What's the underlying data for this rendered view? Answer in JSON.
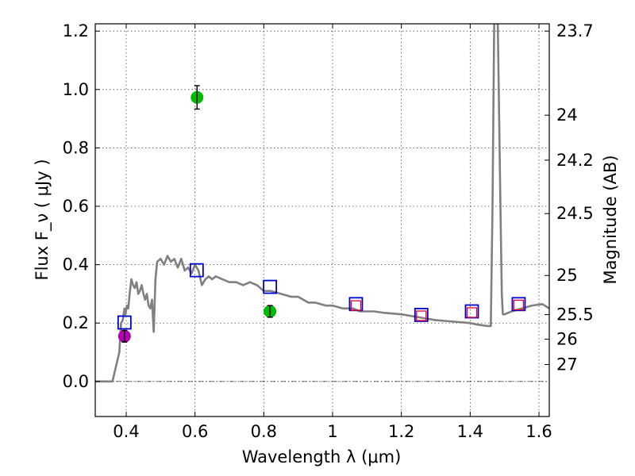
{
  "chart_data": {
    "type": "scatter",
    "xlabel": "Wavelength  λ (μm)",
    "ylabel": "Flux  F_ν  ( μJy )",
    "ylabel_right": "Magnitude (AB)",
    "xlim": [
      0.31,
      1.63
    ],
    "ylim": [
      -0.12,
      1.225
    ],
    "grid": true,
    "x_ticks": [
      {
        "value": 0.4,
        "label": "0.4"
      },
      {
        "value": 0.6,
        "label": "0.6"
      },
      {
        "value": 0.8,
        "label": "0.8"
      },
      {
        "value": 1.0,
        "label": "1"
      },
      {
        "value": 1.2,
        "label": "1.2"
      },
      {
        "value": 1.4,
        "label": "1.4"
      },
      {
        "value": 1.6,
        "label": "1.6"
      }
    ],
    "y_ticks": [
      {
        "value": 0.0,
        "label": "0.0"
      },
      {
        "value": 0.2,
        "label": "0.2"
      },
      {
        "value": 0.4,
        "label": "0.4"
      },
      {
        "value": 0.6,
        "label": "0.6"
      },
      {
        "value": 0.8,
        "label": "0.8"
      },
      {
        "value": 1.0,
        "label": "1.0"
      },
      {
        "value": 1.2,
        "label": "1.2"
      }
    ],
    "right_ticks": [
      {
        "flux": 1.2,
        "label": "23.7"
      },
      {
        "flux": 0.912,
        "label": "24"
      },
      {
        "flux": 0.758,
        "label": "24.2"
      },
      {
        "flux": 0.575,
        "label": "24.5"
      },
      {
        "flux": 0.363,
        "label": "25"
      },
      {
        "flux": 0.229,
        "label": "25.5"
      },
      {
        "flux": 0.145,
        "label": "26"
      },
      {
        "flux": 0.058,
        "label": "27"
      }
    ],
    "model_sed": {
      "name": "model SED",
      "color": "#808080",
      "x": [
        0.31,
        0.36,
        0.37,
        0.372,
        0.38,
        0.385,
        0.39,
        0.395,
        0.398,
        0.402,
        0.406,
        0.41,
        0.415,
        0.42,
        0.425,
        0.43,
        0.435,
        0.44,
        0.445,
        0.45,
        0.455,
        0.46,
        0.465,
        0.47,
        0.475,
        0.48,
        0.485,
        0.49,
        0.5,
        0.51,
        0.52,
        0.53,
        0.54,
        0.55,
        0.56,
        0.57,
        0.58,
        0.59,
        0.6,
        0.61,
        0.62,
        0.63,
        0.64,
        0.65,
        0.66,
        0.68,
        0.7,
        0.72,
        0.74,
        0.76,
        0.78,
        0.8,
        0.82,
        0.85,
        0.88,
        0.9,
        0.93,
        0.95,
        0.98,
        1.0,
        1.03,
        1.06,
        1.08,
        1.1,
        1.12,
        1.15,
        1.2,
        1.25,
        1.3,
        1.35,
        1.4,
        1.42,
        1.45,
        1.46,
        1.465,
        1.47,
        1.48,
        1.488,
        1.492,
        1.495,
        1.5,
        1.52,
        1.55,
        1.58,
        1.61,
        1.63
      ],
      "y": [
        0.0,
        0.0,
        0.05,
        0.06,
        0.1,
        0.2,
        0.21,
        0.25,
        0.23,
        0.26,
        0.25,
        0.3,
        0.35,
        0.33,
        0.32,
        0.34,
        0.3,
        0.31,
        0.33,
        0.3,
        0.28,
        0.3,
        0.26,
        0.25,
        0.28,
        0.17,
        0.35,
        0.41,
        0.42,
        0.4,
        0.43,
        0.41,
        0.42,
        0.39,
        0.42,
        0.38,
        0.39,
        0.37,
        0.4,
        0.38,
        0.33,
        0.35,
        0.36,
        0.35,
        0.36,
        0.35,
        0.34,
        0.34,
        0.33,
        0.34,
        0.33,
        0.31,
        0.31,
        0.3,
        0.29,
        0.29,
        0.27,
        0.27,
        0.26,
        0.26,
        0.25,
        0.25,
        0.24,
        0.24,
        0.24,
        0.235,
        0.23,
        0.22,
        0.21,
        0.205,
        0.2,
        0.195,
        0.19,
        0.19,
        0.6,
        1.25,
        1.25,
        0.6,
        0.3,
        0.23,
        0.23,
        0.24,
        0.25,
        0.26,
        0.265,
        0.25
      ]
    },
    "model_points": {
      "name": "model photometry",
      "edge_color": "#0000cc",
      "points": [
        {
          "x": 0.395,
          "y": 0.202
        },
        {
          "x": 0.605,
          "y": 0.381
        },
        {
          "x": 0.818,
          "y": 0.324
        },
        {
          "x": 1.068,
          "y": 0.265
        },
        {
          "x": 1.258,
          "y": 0.228
        },
        {
          "x": 1.405,
          "y": 0.24
        },
        {
          "x": 1.541,
          "y": 0.265
        }
      ]
    },
    "observed_red": {
      "name": "observed (red squares)",
      "color": "#e8002a",
      "points": [
        {
          "x": 1.068,
          "y": 0.26
        },
        {
          "x": 1.258,
          "y": 0.225
        },
        {
          "x": 1.405,
          "y": 0.236
        },
        {
          "x": 1.541,
          "y": 0.262
        }
      ]
    },
    "observed_circles": {
      "name": "observed (circles)",
      "points": [
        {
          "x": 0.395,
          "y": 0.155,
          "err": 0.02,
          "color": "#b000b0"
        },
        {
          "x": 0.606,
          "y": 0.973,
          "err": 0.04,
          "color": "#00bb00"
        },
        {
          "x": 0.818,
          "y": 0.24,
          "err": 0.02,
          "color": "#00bb00"
        }
      ]
    }
  }
}
